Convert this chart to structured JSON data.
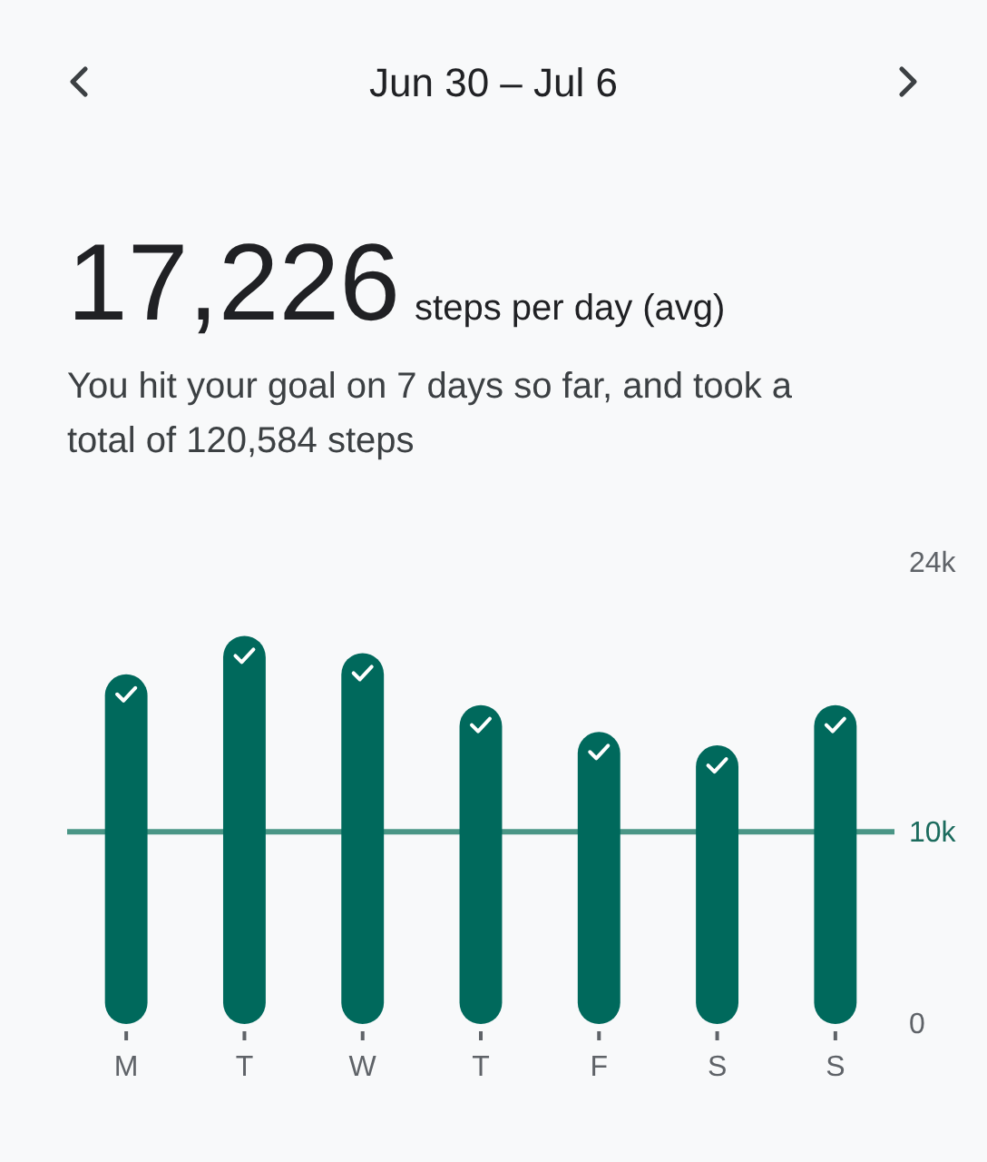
{
  "chart_data": {
    "type": "bar",
    "title": "Jun 30 – Jul 6",
    "annotations": [
      "17,226",
      "steps per day (avg)"
    ],
    "subtitle": "You hit your goal on 7 days so far, and took a total of 120,584 steps",
    "categories": [
      "M",
      "T",
      "W",
      "T",
      "F",
      "S",
      "S"
    ],
    "values": [
      18200,
      20200,
      19300,
      16600,
      15200,
      14500,
      16600
    ],
    "color": "#00695c",
    "ylim": [
      0,
      24000
    ],
    "yticks": [
      0,
      {
        "value": 10000,
        "label": "10k"
      },
      {
        "value": 24000,
        "label": "24k"
      }
    ],
    "ref_lines": [
      {
        "axis": "y",
        "value": 10000,
        "color": "#4a9686"
      }
    ]
  }
}
